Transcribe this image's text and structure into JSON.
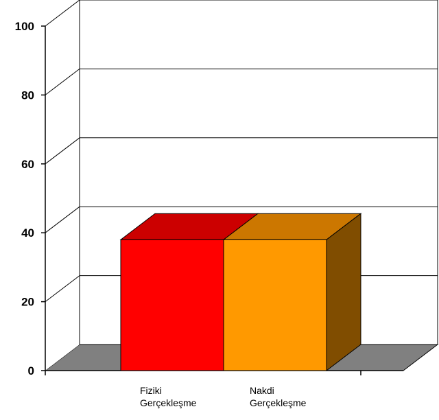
{
  "chart_data": {
    "type": "bar",
    "style": "3d",
    "categories": [
      "Fiziki Gerçekleşme",
      "Nakdi Gerçekleşme"
    ],
    "category_label_lines": [
      [
        "Fiziki",
        "Gerçekleşme"
      ],
      [
        "Nakdi",
        "Gerçekleşme"
      ]
    ],
    "values": [
      38,
      38
    ],
    "colors": [
      "#ff0000",
      "#ff9900"
    ],
    "top_colors": [
      "#cc0000",
      "#cc7700"
    ],
    "side_color": "#804d00",
    "floor_color": "#808080",
    "y_ticks": [
      0,
      20,
      40,
      60,
      80,
      100
    ],
    "ylim": [
      0,
      100
    ],
    "grid": true,
    "legend": false,
    "title": "",
    "xlabel": "",
    "ylabel": ""
  }
}
